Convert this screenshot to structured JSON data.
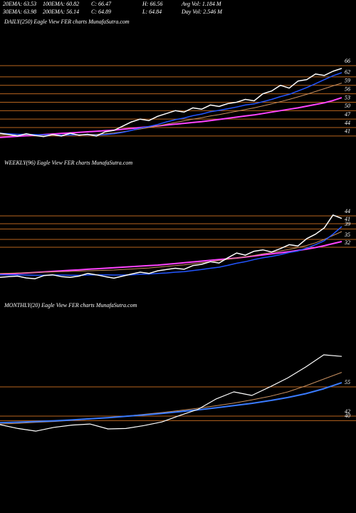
{
  "header": {
    "row1": [
      "20EMA: 63.53",
      "100EMA: 60.82",
      "C: 66.47",
      "H: 66.56",
      "Avg Vol: 1.184  M"
    ],
    "row2": [
      "30EMA: 63.98",
      "200EMA: 56.14",
      "C: 64.89",
      "L: 64.84",
      "Day Vol: 2.546  M"
    ]
  },
  "chart_data": [
    {
      "type": "line",
      "title": "DAILY(250) Eagle   View   FER charts MunafaSutra.com",
      "ylim": [
        38.7,
        81.7
      ],
      "yticks": [
        66,
        62,
        59,
        56,
        53,
        50,
        47,
        44,
        41
      ],
      "tick_color": "#b8651e",
      "series": [
        {
          "color": "#ff44ff",
          "width": 2,
          "values": [
            40.5,
            40.7,
            40.9,
            41.1,
            41.3,
            41.5,
            41.7,
            41.9,
            42.1,
            42.3,
            42.5,
            42.7,
            42.9,
            43.1,
            43.4,
            43.7,
            44,
            44.3,
            44.6,
            44.9,
            45.2,
            45.5,
            45.8,
            46.1,
            46.5,
            46.9,
            47.3,
            47.7,
            48.1,
            48.5,
            49,
            49.5,
            50,
            50.5,
            51,
            51.6,
            52.2,
            52.8,
            53.6,
            54.6
          ]
        },
        {
          "color": "#c89060",
          "width": 1,
          "values": [
            41.5,
            41.5,
            41.4,
            41.4,
            41.3,
            41.3,
            41.3,
            41.3,
            41.4,
            41.4,
            41.5,
            41.6,
            41.8,
            42.1,
            42.5,
            43,
            43.5,
            44,
            44.6,
            45.2,
            45.8,
            46.4,
            47,
            47.5,
            48.1,
            48.6,
            49.2,
            49.8,
            50.4,
            51,
            51.7,
            52.4,
            53.2,
            54,
            54.9,
            55.8,
            56.8,
            57.8,
            58.8,
            59.8
          ]
        },
        {
          "color": "#2255ff",
          "width": 1.5,
          "values": [
            42,
            41.8,
            41.6,
            41.6,
            41.5,
            41.4,
            41.4,
            41.3,
            41.4,
            41.4,
            41.4,
            41.3,
            41.5,
            41.8,
            42.3,
            43,
            43.8,
            44.4,
            45.1,
            46,
            46.8,
            47.4,
            48.2,
            48.8,
            49.6,
            50.1,
            50.7,
            51.3,
            52,
            52.4,
            53.2,
            54,
            55,
            55.8,
            57,
            58.2,
            59.6,
            61,
            62.4,
            63.5
          ]
        },
        {
          "color": "#ffffff",
          "width": 1.5,
          "values": [
            42,
            41.5,
            41,
            41.8,
            41.2,
            40.8,
            41.5,
            41,
            42,
            41.3,
            41.6,
            41,
            42.5,
            43,
            44.5,
            46,
            47,
            46.5,
            48,
            49,
            50,
            49.5,
            51,
            50.5,
            52,
            51.5,
            52.5,
            53,
            54,
            53.5,
            56,
            57,
            59,
            58,
            60.5,
            61,
            63,
            62.5,
            64,
            65
          ]
        }
      ]
    },
    {
      "type": "line",
      "title": "WEEKLY(96) Eagle   View   FER charts MunafaSutra.com",
      "ylim": [
        17.6,
        65.2
      ],
      "yticks": [
        35,
        32,
        44,
        41,
        39
      ],
      "tick_color": "#b8651e",
      "series": [
        {
          "color": "#ff44ff",
          "width": 2,
          "values": [
            21.6,
            21.8,
            22,
            22.2,
            22.4,
            22.6,
            22.8,
            23,
            23.2,
            23.4,
            23.6,
            23.8,
            24,
            24.2,
            24.4,
            24.6,
            24.8,
            25,
            25.2,
            25.5,
            25.8,
            26.1,
            26.4,
            26.7,
            27,
            27.3,
            27.6,
            27.9,
            28.3,
            28.7,
            29.1,
            29.5,
            29.9,
            30.3,
            30.8,
            31.3,
            31.9,
            32.6,
            33.4,
            34.2
          ]
        },
        {
          "color": "#c89060",
          "width": 1,
          "values": [
            22,
            22.1,
            22.2,
            22.3,
            22.4,
            22.5,
            22.6,
            22.7,
            22.8,
            22.9,
            23,
            23.1,
            23.2,
            23.3,
            23.5,
            23.7,
            23.9,
            24.1,
            24.4,
            24.7,
            25,
            25.3,
            25.7,
            26.1,
            26.5,
            26.9,
            27.4,
            27.9,
            28.4,
            28.9,
            29.5,
            30,
            30.6,
            31.2,
            31.9,
            32.7,
            33.7,
            35,
            36.5,
            38
          ]
        },
        {
          "color": "#2255ff",
          "width": 1.5,
          "values": [
            21.5,
            21.5,
            21.5,
            21.4,
            21.3,
            21.3,
            21.4,
            21.4,
            21.3,
            21.3,
            21.4,
            21.5,
            21.5,
            21.4,
            21.4,
            21.5,
            21.7,
            21.8,
            22,
            22.2,
            22.5,
            22.7,
            23.1,
            23.5,
            24,
            24.4,
            25.1,
            25.9,
            26.5,
            27.3,
            28,
            28.5,
            29.2,
            30,
            30.6,
            31.7,
            33,
            34.5,
            37,
            39.9
          ]
        },
        {
          "color": "#ffffff",
          "width": 1.5,
          "values": [
            20.5,
            20.8,
            21,
            20.3,
            20,
            21.2,
            21.5,
            20.8,
            20.5,
            21,
            22,
            21.5,
            20.8,
            20.2,
            21,
            21.8,
            22.5,
            22,
            23,
            23.5,
            24,
            23.6,
            25,
            25.5,
            26.5,
            26,
            28,
            29.8,
            29,
            30.5,
            31,
            30.2,
            31.5,
            33,
            32.5,
            35.3,
            37,
            39.4,
            44.3,
            43
          ]
        }
      ]
    },
    {
      "type": "line",
      "title": "MONTHLY(20) Eagle   View   FER charts MunafaSutra.com",
      "ylim": [
        5.2,
        87.7
      ],
      "yticks": [
        55,
        42,
        40
      ],
      "tick_color": "#b8651e",
      "series": [
        {
          "color": "#c89060",
          "width": 1,
          "values": [
            38.5,
            38.8,
            39.2,
            39.6,
            40.1,
            40.7,
            41.3,
            42,
            42.8,
            43.6,
            44.5,
            45.5,
            46.6,
            47.8,
            49.2,
            50.8,
            52.8,
            55.5,
            58.5,
            61.5
          ]
        },
        {
          "color": "#3a7bff",
          "width": 2,
          "values": [
            39.1,
            39.3,
            39.6,
            39.9,
            40.3,
            40.8,
            41.3,
            41.9,
            42.5,
            43.2,
            44,
            44.8,
            45.7,
            46.7,
            47.7,
            48.9,
            50.3,
            52,
            54.2,
            56.9
          ]
        },
        {
          "color": "#ffffff",
          "width": 1.2,
          "values": [
            38.2,
            36.5,
            35.3,
            37,
            38,
            38.5,
            36.3,
            36.5,
            37.8,
            39.4,
            42.3,
            45,
            49.6,
            52.8,
            51.2,
            55,
            59,
            63.9,
            69.3,
            68.6
          ]
        }
      ]
    }
  ]
}
